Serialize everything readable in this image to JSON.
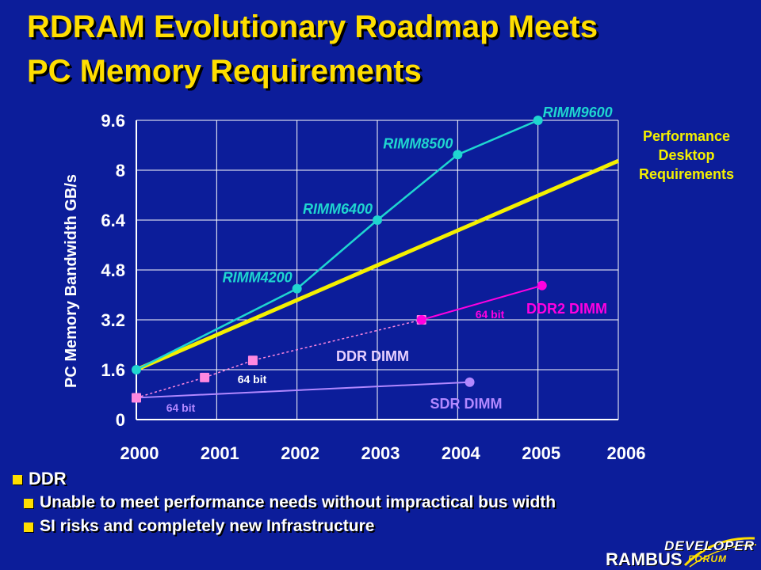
{
  "slide": {
    "title_line1": "RDRAM Evolutionary Roadmap Meets",
    "title_line2": "PC Memory Requirements",
    "bullets": [
      {
        "text": "DDR",
        "level": 1
      },
      {
        "text": "Unable to meet performance needs without impractical bus width",
        "level": 2
      },
      {
        "text": "SI risks and completely new Infrastructure",
        "level": 2
      }
    ],
    "logo": {
      "top_text": "DEVELOPER",
      "brand": "RAMBUS",
      "sub_text": "FORUM"
    }
  },
  "colors": {
    "background": "#0c1d9a",
    "title": "#ffde00",
    "rimm": "#1fd6d0",
    "performance": "#f4f000",
    "ddr": "#ff88e0",
    "ddr2": "#ff00e0",
    "sdr": "#b288ff",
    "axis": "#ffffff"
  },
  "chart_data": {
    "type": "line",
    "ylabel": "PC Memory Bandwidth GB/s",
    "xlabel": "",
    "xlim": [
      2000,
      2006
    ],
    "ylim": [
      0,
      9.6
    ],
    "yticks": [
      "0",
      "1.6",
      "3.2",
      "4.8",
      "6.4",
      "8",
      "9.6"
    ],
    "xticks": [
      "2000",
      "2001",
      "2002",
      "2003",
      "2004",
      "2005",
      "2006"
    ],
    "grid": true,
    "series": [
      {
        "key": "rimm",
        "style": "solid",
        "marker": "circle",
        "points": [
          [
            2000,
            1.6
          ],
          [
            2002,
            4.2
          ],
          [
            2003,
            6.4
          ],
          [
            2004,
            8.5
          ],
          [
            2005,
            9.6
          ]
        ],
        "point_labels": [
          "",
          "RIMM4200",
          "RIMM6400",
          "RIMM8500",
          "RIMM9600"
        ]
      },
      {
        "key": "performance",
        "style": "thick",
        "marker": "none",
        "points": [
          [
            2000,
            1.6
          ],
          [
            2006,
            8.3
          ]
        ],
        "label": "Performance Desktop Requirements"
      },
      {
        "key": "ddr",
        "style": "dashed",
        "marker": "square",
        "points": [
          [
            2000,
            0.7
          ],
          [
            2000.85,
            1.35
          ],
          [
            2001.45,
            1.9
          ],
          [
            2003.55,
            3.2
          ]
        ],
        "label": "DDR DIMM",
        "annotation": "64 bit"
      },
      {
        "key": "ddr2",
        "style": "solid",
        "marker": "circle",
        "points": [
          [
            2003.55,
            3.2
          ],
          [
            2005.05,
            4.3
          ]
        ],
        "label": "DDR2 DIMM",
        "annotation": "64 bit"
      },
      {
        "key": "sdr",
        "style": "solid",
        "marker": "circle",
        "points": [
          [
            2000,
            0.7
          ],
          [
            2004.15,
            1.2
          ]
        ],
        "label": "SDR DIMM",
        "annotation": "64 bit"
      }
    ]
  }
}
